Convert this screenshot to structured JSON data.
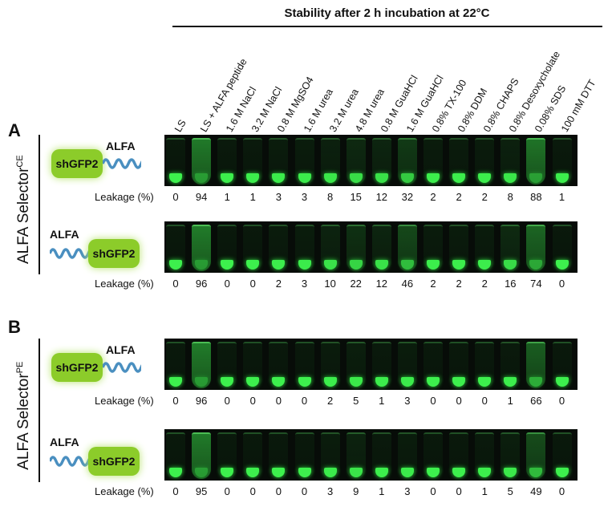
{
  "title": "Stability after 2 h incubation at 22°C",
  "columns": [
    "LS",
    "LS + ALFA peptide",
    "1.6 M NaCl",
    "3.2 M NaCl",
    "0.8 M MgSO4",
    "1.6 M urea",
    "3.2 M urea",
    "4.8 M urea",
    "0.8 M GuaHCl",
    "1.6 M GuaHCl",
    "0.8% TX-100",
    "0.8% DDM",
    "0.8% CHAPS",
    "0.8% Desoxycholate",
    "0.08% SDS",
    "100 mM DTT"
  ],
  "panels": [
    {
      "letter": "A",
      "selector": "ALFA Selector",
      "superscript": "CE",
      "rows": [
        {
          "construct": "shGFP2-ALFA",
          "gfp_label": "shGFP2",
          "tag_label": "ALFA",
          "leakage_label": "Leakage (%)",
          "leakage": [
            0,
            94,
            1,
            1,
            3,
            3,
            8,
            15,
            12,
            32,
            2,
            2,
            2,
            8,
            88,
            1
          ]
        },
        {
          "construct": "ALFA-shGFP2",
          "gfp_label": "shGFP2",
          "tag_label": "ALFA",
          "leakage_label": "Leakage (%)",
          "leakage": [
            0,
            96,
            0,
            0,
            2,
            3,
            10,
            22,
            12,
            46,
            2,
            2,
            2,
            16,
            74,
            0
          ]
        }
      ]
    },
    {
      "letter": "B",
      "selector": "ALFA Selector",
      "superscript": "PE",
      "rows": [
        {
          "construct": "shGFP2-ALFA",
          "gfp_label": "shGFP2",
          "tag_label": "ALFA",
          "leakage_label": "Leakage (%)",
          "leakage": [
            0,
            96,
            0,
            0,
            0,
            0,
            2,
            5,
            1,
            3,
            0,
            0,
            0,
            1,
            66,
            0
          ]
        },
        {
          "construct": "ALFA-shGFP2",
          "gfp_label": "shGFP2",
          "tag_label": "ALFA",
          "leakage_label": "Leakage (%)",
          "leakage": [
            0,
            95,
            0,
            0,
            0,
            0,
            3,
            9,
            1,
            3,
            0,
            0,
            1,
            5,
            49,
            0
          ]
        }
      ]
    }
  ],
  "colors": {
    "gfp": "#8ccc2a",
    "fluorescence": "#3df04d",
    "linker": "#4a8fc0"
  }
}
